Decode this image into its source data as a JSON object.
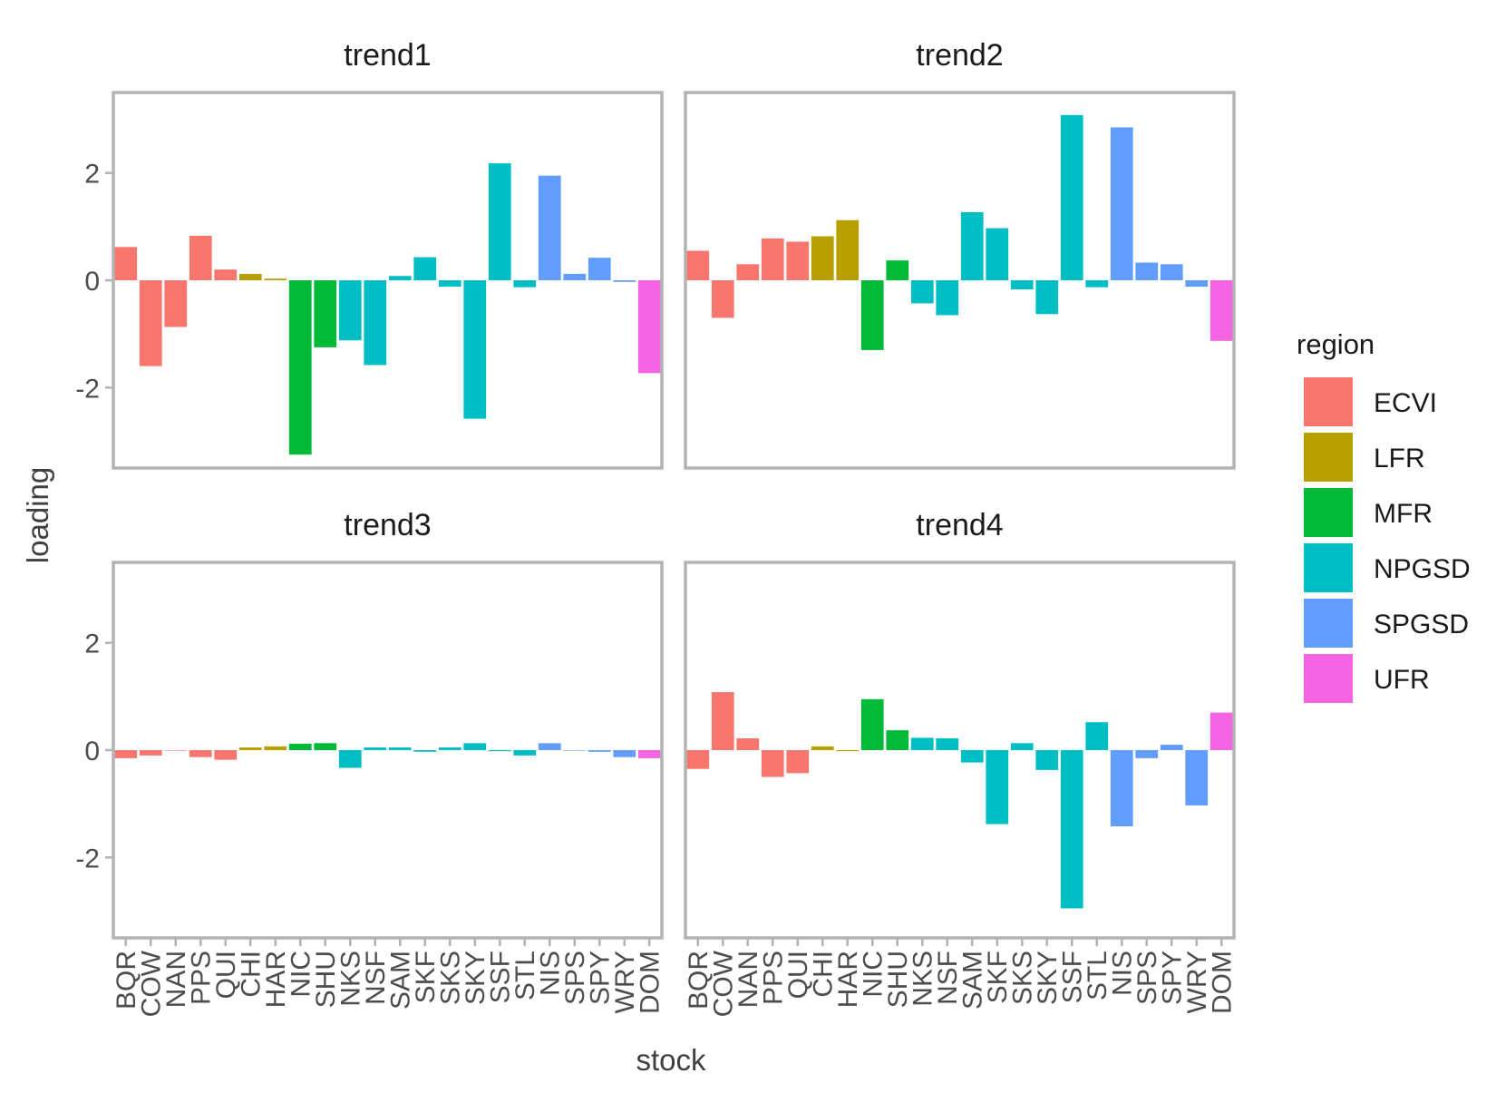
{
  "chart_data": {
    "type": "bar",
    "facet_layout": "2x2 grid, shared axes",
    "xlabel": "stock",
    "ylabel": "loading",
    "ylim": [
      -3.5,
      3.5
    ],
    "yticks": [
      -2,
      0,
      2
    ],
    "ytick_labels": [
      "-2",
      "0",
      "2"
    ],
    "grid": false,
    "legend_title": "region",
    "legend_position": "right",
    "regions": [
      {
        "name": "ECVI",
        "color": "#F8766D"
      },
      {
        "name": "LFR",
        "color": "#B79F00"
      },
      {
        "name": "MFR",
        "color": "#00BA38"
      },
      {
        "name": "NPGSD",
        "color": "#00BFC4"
      },
      {
        "name": "SPGSD",
        "color": "#619CFF"
      },
      {
        "name": "UFR",
        "color": "#F564E3"
      }
    ],
    "categories": [
      "BQR",
      "COW",
      "NAN",
      "PPS",
      "QUI",
      "CHI",
      "HAR",
      "NIC",
      "SHU",
      "NKS",
      "NSF",
      "SAM",
      "SKF",
      "SKS",
      "SKY",
      "SSF",
      "STL",
      "NIS",
      "SPS",
      "SPY",
      "WRY",
      "DOM"
    ],
    "category_regions": [
      "ECVI",
      "ECVI",
      "ECVI",
      "ECVI",
      "ECVI",
      "LFR",
      "LFR",
      "MFR",
      "MFR",
      "NPGSD",
      "NPGSD",
      "NPGSD",
      "NPGSD",
      "NPGSD",
      "NPGSD",
      "NPGSD",
      "NPGSD",
      "SPGSD",
      "SPGSD",
      "SPGSD",
      "SPGSD",
      "UFR"
    ],
    "panels": [
      {
        "title": "trend1",
        "values": [
          0.62,
          -1.6,
          -0.87,
          0.83,
          0.2,
          0.12,
          0.03,
          -3.25,
          -1.25,
          -1.12,
          -1.58,
          0.08,
          0.43,
          -0.12,
          -2.58,
          2.18,
          -0.13,
          1.95,
          0.12,
          0.42,
          -0.03,
          -1.73
        ]
      },
      {
        "title": "trend2",
        "values": [
          0.55,
          -0.7,
          0.3,
          0.78,
          0.72,
          0.82,
          1.12,
          -1.3,
          0.37,
          -0.43,
          -0.65,
          1.27,
          0.97,
          -0.17,
          -0.63,
          3.08,
          -0.13,
          2.85,
          0.33,
          0.3,
          -0.12,
          -1.13
        ]
      },
      {
        "title": "trend3",
        "values": [
          -0.15,
          -0.1,
          0.0,
          -0.13,
          -0.18,
          0.05,
          0.07,
          0.12,
          0.13,
          -0.33,
          0.05,
          0.05,
          -0.03,
          0.05,
          0.13,
          -0.02,
          -0.1,
          0.13,
          0.0,
          -0.03,
          -0.13,
          -0.15
        ]
      },
      {
        "title": "trend4",
        "values": [
          -0.35,
          1.08,
          0.22,
          -0.5,
          -0.43,
          0.07,
          -0.02,
          0.95,
          0.37,
          0.23,
          0.22,
          -0.23,
          -1.38,
          0.13,
          -0.37,
          -2.95,
          0.52,
          -1.42,
          -0.15,
          0.1,
          -1.03,
          0.7
        ]
      }
    ]
  }
}
